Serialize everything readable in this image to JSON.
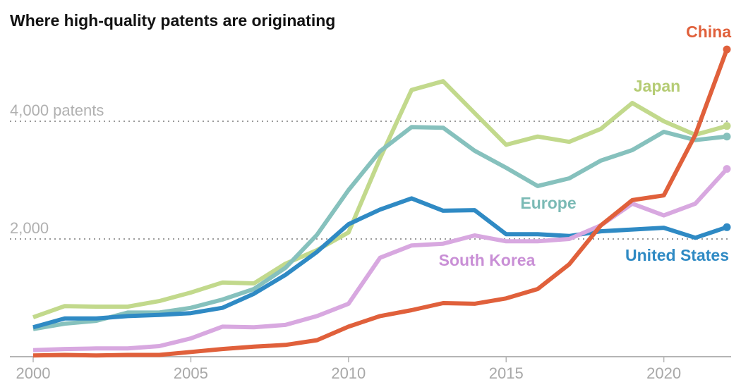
{
  "chart_data": {
    "type": "line",
    "title": "Where high-quality patents are originating",
    "xlabel": "",
    "ylabel": "",
    "x": [
      2000,
      2001,
      2002,
      2003,
      2004,
      2005,
      2006,
      2007,
      2008,
      2009,
      2010,
      2011,
      2012,
      2013,
      2014,
      2015,
      2016,
      2017,
      2018,
      2019,
      2020,
      2021,
      2022
    ],
    "xlim": [
      2000,
      2022
    ],
    "ylim": [
      0,
      5300
    ],
    "x_ticks": [
      2000,
      2005,
      2010,
      2015,
      2020
    ],
    "x_tick_labels": [
      "2000",
      "2005",
      "2010",
      "2015",
      "2020"
    ],
    "y_gridlines": [
      2000,
      4000
    ],
    "y_tick_labels": [
      "2,000",
      "4,000 patents"
    ],
    "grid": "horizontal dotted",
    "legend": "direct labels",
    "series": [
      {
        "name": "Japan",
        "color": "#c2d98c",
        "label_color": "#b5cc74",
        "values": [
          670,
          860,
          850,
          850,
          945,
          1090,
          1260,
          1245,
          1580,
          1810,
          2110,
          3370,
          4530,
          4680,
          4140,
          3600,
          3740,
          3650,
          3870,
          4310,
          4000,
          3770,
          3920
        ]
      },
      {
        "name": "Europe",
        "color": "#86c1bd",
        "label_color": "#7bbab5",
        "values": [
          470,
          560,
          610,
          750,
          750,
          830,
          970,
          1150,
          1510,
          2070,
          2830,
          3490,
          3900,
          3890,
          3500,
          3210,
          2900,
          3030,
          3330,
          3510,
          3820,
          3680,
          3740
        ]
      },
      {
        "name": "United States",
        "color": "#2f8ac4",
        "label_color": "#2f8ac4",
        "values": [
          500,
          650,
          650,
          690,
          710,
          740,
          830,
          1070,
          1390,
          1780,
          2250,
          2500,
          2690,
          2480,
          2490,
          2080,
          2080,
          2050,
          2130,
          2160,
          2190,
          2020,
          2200
        ]
      },
      {
        "name": "South Korea",
        "color": "#d8a8e0",
        "label_color": "#c98fd6",
        "values": [
          110,
          130,
          140,
          140,
          180,
          310,
          510,
          500,
          540,
          690,
          900,
          1680,
          1890,
          1920,
          2060,
          1960,
          1960,
          2000,
          2230,
          2600,
          2400,
          2600,
          3190
        ]
      },
      {
        "name": "China",
        "color": "#e0603b",
        "label_color": "#e0603b",
        "values": [
          20,
          30,
          20,
          30,
          30,
          80,
          130,
          170,
          200,
          280,
          510,
          690,
          790,
          910,
          900,
          990,
          1150,
          1570,
          2230,
          2660,
          2740,
          3770,
          5220
        ]
      }
    ]
  }
}
